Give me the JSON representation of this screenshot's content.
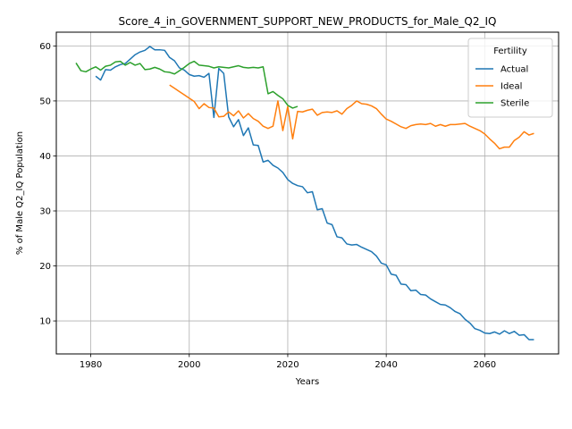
{
  "chart_data": {
    "type": "line",
    "title": "Score_4_in_GOVERNMENT_SUPPORT_NEW_PRODUCTS_for_Male_Q2_IQ",
    "xlabel": "Years",
    "ylabel": "% of Male Q2_IQ Population",
    "xlim": [
      1973,
      2075
    ],
    "ylim": [
      4,
      62.5
    ],
    "xticks": [
      1980,
      2000,
      2020,
      2040,
      2060
    ],
    "yticks": [
      10,
      20,
      30,
      40,
      50,
      60
    ],
    "grid": true,
    "legend": {
      "title": "Fertility",
      "placement": "top-right"
    },
    "series": [
      {
        "name": "Actual",
        "color": "#1f77b4",
        "x": [
          1981,
          1982,
          1983,
          1984,
          1985,
          1986,
          1987,
          1988,
          1989,
          1990,
          1991,
          1992,
          1993,
          1994,
          1995,
          1996,
          1997,
          1998,
          1999,
          2000,
          2001,
          2002,
          2003,
          2004,
          2005,
          2006,
          2007,
          2008,
          2009,
          2010,
          2011,
          2012,
          2013,
          2014,
          2015,
          2016,
          2017,
          2018,
          2019,
          2020,
          2021,
          2022,
          2023,
          2024,
          2025,
          2026,
          2027,
          2028,
          2029,
          2030,
          2031,
          2032,
          2033,
          2034,
          2035,
          2036,
          2037,
          2038,
          2039,
          2040,
          2041,
          2042,
          2043,
          2044,
          2045,
          2046,
          2047,
          2048,
          2049,
          2050,
          2051,
          2052,
          2053,
          2054,
          2055,
          2056,
          2057,
          2058,
          2059,
          2060,
          2061,
          2062,
          2063,
          2064,
          2065,
          2066,
          2067,
          2068,
          2069,
          2070
        ],
        "y": [
          54.5,
          53.8,
          55.7,
          55.6,
          56.2,
          56.6,
          56.8,
          57.6,
          58.4,
          58.9,
          59.2,
          59.9,
          59.3,
          59.3,
          59.2,
          57.9,
          57.3,
          56.0,
          55.6,
          54.8,
          54.5,
          54.6,
          54.3,
          55.0,
          47.0,
          55.9,
          55.0,
          47.1,
          45.3,
          46.6,
          43.7,
          45.1,
          42.0,
          41.9,
          38.9,
          39.2,
          38.3,
          37.8,
          37.0,
          35.7,
          35.0,
          34.6,
          34.4,
          33.3,
          33.5,
          30.2,
          30.4,
          27.8,
          27.5,
          25.3,
          25.1,
          24.0,
          23.8,
          23.9,
          23.4,
          23.0,
          22.6,
          21.8,
          20.5,
          20.2,
          18.5,
          18.3,
          16.7,
          16.6,
          15.5,
          15.6,
          14.8,
          14.7,
          14.0,
          13.5,
          13.0,
          12.9,
          12.4,
          11.7,
          11.3,
          10.3,
          9.6,
          8.6,
          8.3,
          7.8,
          7.7,
          8.0,
          7.6,
          8.2,
          7.7,
          8.1,
          7.4,
          7.5,
          6.6,
          6.6
        ]
      },
      {
        "name": "Ideal",
        "color": "#ff7f0e",
        "x": [
          1996,
          1997,
          1998,
          1999,
          2000,
          2001,
          2002,
          2003,
          2004,
          2005,
          2006,
          2007,
          2008,
          2009,
          2010,
          2011,
          2012,
          2013,
          2014,
          2015,
          2016,
          2017,
          2018,
          2019,
          2020,
          2021,
          2022,
          2023,
          2024,
          2025,
          2026,
          2027,
          2028,
          2029,
          2030,
          2031,
          2032,
          2033,
          2034,
          2035,
          2036,
          2037,
          2038,
          2039,
          2040,
          2041,
          2042,
          2043,
          2044,
          2045,
          2046,
          2047,
          2048,
          2049,
          2050,
          2051,
          2052,
          2053,
          2054,
          2055,
          2056,
          2057,
          2058,
          2059,
          2060,
          2061,
          2062,
          2063,
          2064,
          2065,
          2066,
          2067,
          2068,
          2069,
          2070
        ],
        "y": [
          52.9,
          52.3,
          51.7,
          51.1,
          50.5,
          49.9,
          48.6,
          49.5,
          48.8,
          48.7,
          47.1,
          47.2,
          48.0,
          47.3,
          48.2,
          46.9,
          47.7,
          46.8,
          46.3,
          45.4,
          45.0,
          45.4,
          50.0,
          44.6,
          49.0,
          43.1,
          48.1,
          48.0,
          48.3,
          48.5,
          47.4,
          47.9,
          48.0,
          47.9,
          48.2,
          47.6,
          48.6,
          49.2,
          50.0,
          49.5,
          49.4,
          49.1,
          48.6,
          47.6,
          46.7,
          46.3,
          45.8,
          45.3,
          45.0,
          45.5,
          45.7,
          45.8,
          45.7,
          45.9,
          45.4,
          45.7,
          45.4,
          45.7,
          45.7,
          45.8,
          45.9,
          45.4,
          45.0,
          44.6,
          44.0,
          43.1,
          42.3,
          41.3,
          41.6,
          41.6,
          42.8,
          43.4,
          44.4,
          43.8,
          44.1
        ]
      },
      {
        "name": "Sterile",
        "color": "#2ca02c",
        "x": [
          1977,
          1978,
          1979,
          1980,
          1981,
          1982,
          1983,
          1984,
          1985,
          1986,
          1987,
          1988,
          1989,
          1990,
          1991,
          1992,
          1993,
          1994,
          1995,
          1996,
          1997,
          1998,
          1999,
          2000,
          2001,
          2002,
          2003,
          2004,
          2005,
          2006,
          2007,
          2008,
          2009,
          2010,
          2011,
          2012,
          2013,
          2014,
          2015,
          2016,
          2017,
          2018,
          2019,
          2020,
          2021,
          2022
        ],
        "y": [
          56.9,
          55.5,
          55.3,
          55.8,
          56.2,
          55.6,
          56.3,
          56.5,
          57.1,
          57.2,
          56.5,
          57.0,
          56.5,
          56.8,
          55.7,
          55.8,
          56.1,
          55.8,
          55.3,
          55.2,
          54.9,
          55.5,
          56.1,
          56.8,
          57.2,
          56.5,
          56.4,
          56.3,
          56.0,
          56.2,
          56.1,
          56.0,
          56.2,
          56.4,
          56.1,
          56.0,
          56.1,
          56.0,
          56.2,
          51.3,
          51.7,
          51.0,
          50.4,
          49.2,
          48.7,
          49.0
        ]
      }
    ]
  }
}
